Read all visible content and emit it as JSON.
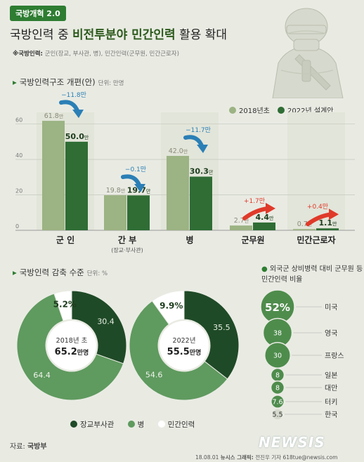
{
  "header": {
    "tag": "국방개혁 2.0",
    "title_pre": "국방인력 중 ",
    "title_bold": "비전투분야 민간인력",
    "title_post": " 활용 확대",
    "note_label": "※국방인력:",
    "note_text": " 군인(장교, 부사관, 병), 민간인력(군무원, 민간근로자)"
  },
  "colors": {
    "light_green": "#9cb383",
    "dark_green": "#2f6d35",
    "mid_green": "#5f9a5f",
    "arrow_blue": "#2a7fb6",
    "arrow_red": "#e03a2a",
    "bg": "#e9ebe3"
  },
  "chart_data": [
    {
      "type": "bar",
      "title": "국방인력구조 개편(안)",
      "unit": "단위: 만명",
      "categories": [
        "군 인",
        "간 부",
        "병",
        "군무원",
        "민간근로자"
      ],
      "category_notes": [
        "",
        "(장교·부사관)",
        "",
        "",
        ""
      ],
      "series": [
        {
          "name": "2018년초",
          "values": [
            61.8,
            19.8,
            42.0,
            2.7,
            0.7
          ],
          "labels": [
            "61.8만",
            "19.8만",
            "42.0만",
            "2.7만",
            "0.7만"
          ]
        },
        {
          "name": "2022년 설계안",
          "values": [
            50.0,
            19.7,
            30.3,
            4.4,
            1.1
          ],
          "labels": [
            "50.0만",
            "19.7만",
            "30.3만",
            "4.4만",
            "1.1만"
          ]
        }
      ],
      "changes": [
        "−11.8만",
        "−0.1만",
        "−11.7만",
        "+1.7만",
        "+0.4만"
      ],
      "yticks": [
        0,
        20,
        40,
        60
      ],
      "ylim": [
        0,
        65
      ],
      "legend_position": "top-right"
    },
    {
      "type": "pie",
      "title": "국방인력 감축 수준",
      "unit": "단위: %",
      "categories": [
        "장교부사관",
        "병",
        "민간인력"
      ],
      "charts": [
        {
          "name": "2018년 초",
          "total": "65.2만명",
          "values": [
            30.4,
            64.4,
            5.2
          ],
          "labels": [
            "30.4",
            "64.4",
            "5.2%"
          ]
        },
        {
          "name": "2022년",
          "total": "55.5만명",
          "values": [
            35.5,
            54.6,
            9.9
          ],
          "labels": [
            "35.5",
            "54.6",
            "9.9%"
          ]
        }
      ]
    },
    {
      "type": "bubble",
      "title": "외국군 상비병력 대비 군무원 등 민간인력 비율",
      "categories": [
        "미국",
        "영국",
        "프랑스",
        "일본",
        "대만",
        "터키",
        "한국"
      ],
      "values": [
        52,
        38,
        30,
        8,
        8,
        7.6,
        5.5
      ],
      "labels": [
        "52%",
        "38",
        "30",
        "8",
        "8",
        "7.6",
        "5.5"
      ]
    }
  ],
  "footer": {
    "source_label": "자료: ",
    "source": "국방부",
    "date": "18.08.01",
    "agency": "뉴시스 그래픽:",
    "credit": " 전진우 기자 618tue@newsis.com",
    "logo": "NEWSIS"
  }
}
